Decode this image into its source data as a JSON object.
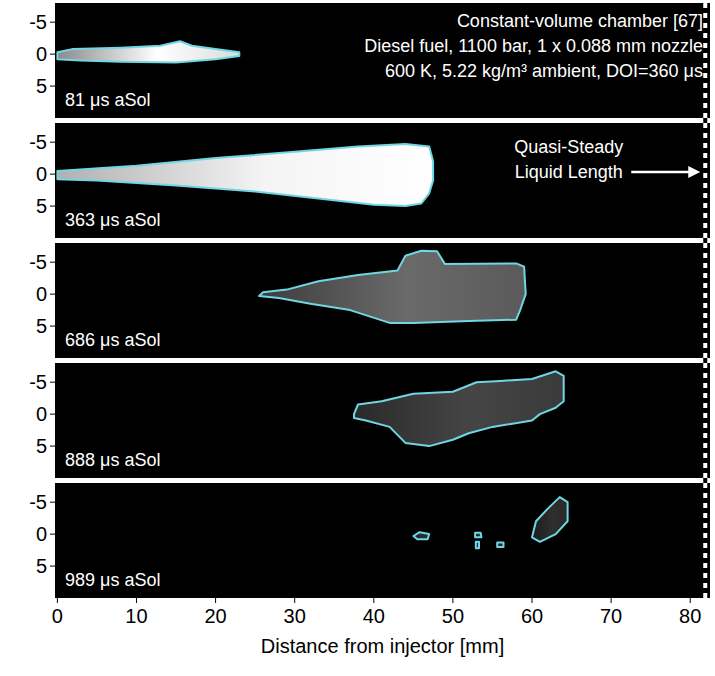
{
  "chart_data": {
    "type": "contour",
    "x_label": "Distance from injector [mm]",
    "xlim": [
      -0.3,
      82.5
    ],
    "xticks": [
      0,
      10,
      20,
      30,
      40,
      50,
      60,
      70,
      80
    ],
    "ylim": [
      10,
      -8
    ],
    "yticks": [
      -5,
      0,
      5
    ],
    "annotations": [
      "Constant-volume chamber [67]",
      "Diesel fuel, 1100 bar, 1 x 0.088 mm nozzle",
      "600 K, 5.22 kg/m³ ambient, DOI=360 μs"
    ],
    "reference_line": {
      "label": "Quasi-Steady Liquid Length",
      "x": 81.9
    },
    "panels": [
      {
        "label": "81 μs aSol",
        "outlines": [
          {
            "x": [
              0,
              2,
              8,
              13,
              15.5,
              17,
              20,
              23,
              23,
              20,
              15,
              8,
              3,
              0
            ],
            "y": [
              -0.3,
              -0.8,
              -1,
              -1.3,
              -2,
              -1.3,
              -0.8,
              -0.3,
              0.3,
              0.8,
              1.3,
              1.2,
              1,
              0.8
            ]
          }
        ]
      },
      {
        "label": "363 μs aSol",
        "outlines": [
          {
            "x": [
              0,
              10,
              20,
              30,
              38,
              44,
              47,
              47.5,
              47.5,
              47,
              46,
              44,
              40,
              33,
              25,
              15,
              5,
              0
            ],
            "y": [
              -0.5,
              -1.3,
              -2.5,
              -3.5,
              -4.3,
              -4.7,
              -4.3,
              -2,
              1,
              3,
              4.6,
              5,
              4.8,
              3.8,
              2.7,
              1.8,
              1,
              0.8
            ]
          }
        ]
      },
      {
        "label": "686 μs aSol",
        "outlines": [
          {
            "x": [
              25.5,
              26,
              29,
              33,
              38,
              43,
              44,
              46,
              48,
              49,
              58,
              59,
              59.2,
              58.5,
              58,
              52,
              45,
              42,
              37,
              32,
              28
            ],
            "y": [
              0.3,
              -0.3,
              -0.7,
              -2,
              -3,
              -3.7,
              -6,
              -6.8,
              -6.7,
              -4.7,
              -4.8,
              -4.3,
              0,
              2.5,
              4,
              4.2,
              4.5,
              4.5,
              2.5,
              1.5,
              0.6
            ]
          }
        ]
      },
      {
        "label": "888 μs aSol",
        "outlines": [
          {
            "x": [
              37.5,
              38,
              41,
              45,
              50,
              53,
              56,
              60,
              63,
              64,
              64,
              63,
              61,
              60,
              55,
              52,
              50,
              47,
              44,
              42,
              39,
              37.5
            ],
            "y": [
              0,
              -1.5,
              -2,
              -3.2,
              -3.5,
              -5,
              -5.2,
              -5.5,
              -6.7,
              -6,
              -2,
              -1,
              0,
              1,
              2,
              3,
              4,
              5,
              4.5,
              2,
              1,
              0.6
            ]
          }
        ]
      },
      {
        "label": "989 μs aSol",
        "outlines": [
          {
            "x": [
              45,
              45.8,
              47,
              46.8,
              45.5
            ],
            "y": [
              0.3,
              -0.3,
              0,
              0.8,
              0.8
            ]
          },
          {
            "x": [
              52.8,
              53.5,
              53.6,
              52.8
            ],
            "y": [
              -0.2,
              -0.2,
              0.5,
              0.5
            ]
          },
          {
            "x": [
              52.9,
              53.3,
              53.3,
              52.9
            ],
            "y": [
              1.2,
              1.2,
              2.2,
              2.2
            ]
          },
          {
            "x": [
              55.6,
              56.4,
              56.4,
              55.6
            ],
            "y": [
              1.3,
              1.3,
              2,
              2
            ]
          },
          {
            "x": [
              60,
              60.5,
              62,
              63.5,
              64.5,
              64.5,
              63,
              61
            ],
            "y": [
              0.5,
              -2,
              -4,
              -5.8,
              -5,
              -2,
              0,
              1.2
            ]
          }
        ]
      }
    ]
  }
}
